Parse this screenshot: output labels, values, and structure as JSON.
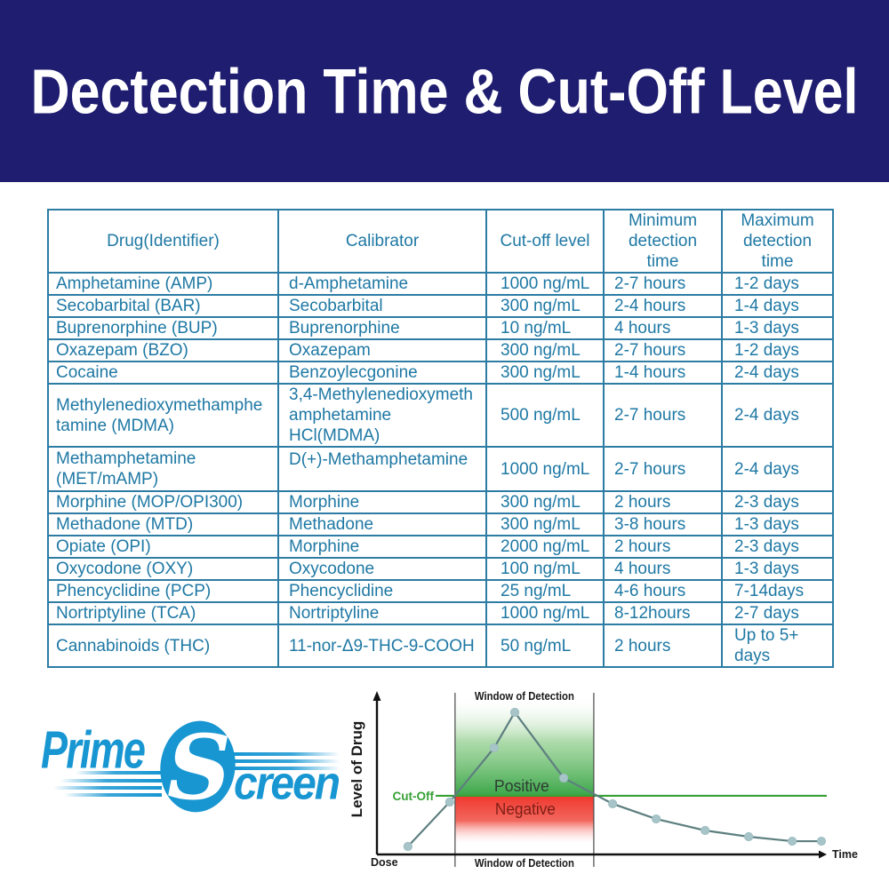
{
  "banner": {
    "title": "Dectection Time & Cut-Off Level",
    "bg_color": "#1f1d6f",
    "text_color": "#ffffff"
  },
  "table": {
    "columns": [
      "Drug(Identifier)",
      "Calibrator",
      "Cut-off level",
      "Minimum\ndetection\ntime",
      "Maximum\ndetection\ntime"
    ],
    "rows": [
      [
        "Amphetamine (AMP)",
        "d-Amphetamine",
        "1000 ng/mL",
        "2-7 hours",
        "1-2 days"
      ],
      [
        "Secobarbital (BAR)",
        "Secobarbital",
        "300 ng/mL",
        "2-4 hours",
        "1-4 days"
      ],
      [
        "Buprenorphine (BUP)",
        "Buprenorphine",
        "10 ng/mL",
        "4 hours",
        "1-3 days"
      ],
      [
        "Oxazepam (BZO)",
        "Oxazepam",
        "300 ng/mL",
        "2-7 hours",
        "1-2 days"
      ],
      [
        "Cocaine",
        "Benzoylecgonine",
        "300 ng/mL",
        "1-4 hours",
        "2-4 days"
      ],
      [
        "Methylenedioxymethamphe\ntamine (MDMA)",
        "3,4-Methylenedioxymeth\namphetamine\nHCl(MDMA)",
        "500 ng/mL",
        "2-7 hours",
        "2-4 days"
      ],
      [
        "Methamphetamine\n(MET/mAMP)",
        "D(+)-Methamphetamine",
        "1000 ng/mL",
        "2-7 hours",
        "2-4 days"
      ],
      [
        "Morphine (MOP/OPI300)",
        "Morphine",
        "300 ng/mL",
        "2 hours",
        "2-3 days"
      ],
      [
        "Methadone (MTD)",
        "Methadone",
        "300 ng/mL",
        "3-8 hours",
        "1-3 days"
      ],
      [
        "Opiate (OPI)",
        "Morphine",
        "2000 ng/mL",
        "2 hours",
        "2-3 days"
      ],
      [
        "Oxycodone (OXY)",
        "Oxycodone",
        "100 ng/mL",
        "4 hours",
        "1-3 days"
      ],
      [
        "Phencyclidine (PCP)",
        "Phencyclidine",
        "25 ng/mL",
        "4-6 hours",
        "7-14days"
      ],
      [
        "Nortriptyline (TCA)",
        "Nortriptyline",
        "1000 ng/mL",
        "8-12hours",
        "2-7 days"
      ],
      [
        "Cannabinoids (THC)",
        "11-nor-Δ9-THC-9-COOH",
        "50 ng/mL",
        "2 hours",
        "Up to 5+\ndays"
      ]
    ],
    "text_color": "#1e78a4",
    "border_color": "#2d7ca4"
  },
  "logo": {
    "word1": "Prime",
    "word2": "creen",
    "monogram": "S",
    "color": "#1796d2"
  },
  "chart_data": {
    "type": "line",
    "title": "",
    "ylabel": "Level of Drug",
    "xlabel": "Time",
    "dose_label": "Dose",
    "cutoff_label": "Cut-Off",
    "window_label_top": "Window of Detection",
    "window_label_bottom": "Window of Detection",
    "positive_label": "Positive",
    "negative_label": "Negative",
    "x_range": [
      0,
      100
    ],
    "y_range": [
      0,
      100
    ],
    "grid": false,
    "cutoff_level": 36.7,
    "detection_window_x": [
      17.4,
      48.3
    ],
    "curve_points": [
      [
        6.9,
        5
      ],
      [
        16.2,
        32.8
      ],
      [
        26.1,
        66.7
      ],
      [
        30.7,
        88.9
      ],
      [
        41.6,
        47.8
      ],
      [
        52.5,
        31.7
      ],
      [
        62.2,
        22.2
      ],
      [
        73.1,
        15
      ],
      [
        82.8,
        11.1
      ],
      [
        92.5,
        8.3
      ],
      [
        99,
        8.3
      ]
    ],
    "colors": {
      "cutoff_line": "#37a135",
      "positive_fill": "#3aa648",
      "negative_fill": "#f0382e",
      "curve": "#5e7f80",
      "marker": "#a7c5c9"
    }
  }
}
